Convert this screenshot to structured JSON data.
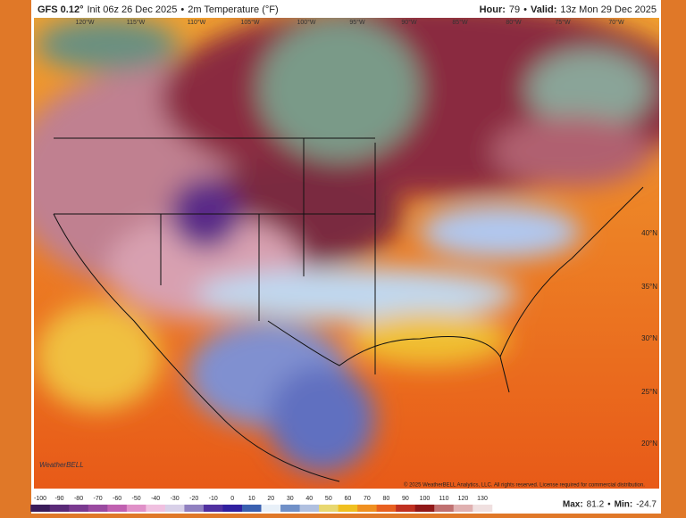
{
  "header": {
    "model": "GFS 0.12°",
    "init": "Init 06z 26 Dec 2025",
    "sep1": "•",
    "field": "2m Temperature (°F)",
    "hour_label": "Hour:",
    "hour": "79",
    "sep2": "•",
    "valid_label": "Valid:",
    "valid": "13z Mon 29 Dec 2025"
  },
  "map": {
    "lon_labels": [
      "120°W",
      "115°W",
      "110°W",
      "105°W",
      "100°W",
      "95°W",
      "90°W",
      "85°W",
      "80°W",
      "75°W",
      "70°W"
    ],
    "lat_labels": [
      "40°N",
      "35°N",
      "30°N",
      "25°N",
      "20°N"
    ],
    "copyright": "© 2025 WeatherBELL Analytics, LLC. All rights reserved. License required for commercial distribution.",
    "logo": "WeatherBELL"
  },
  "colorbar": {
    "ticks": [
      -100,
      -90,
      -80,
      -70,
      -60,
      -50,
      -40,
      -30,
      -20,
      -10,
      0,
      10,
      20,
      30,
      40,
      50,
      60,
      70,
      80,
      90,
      100,
      110,
      120,
      130
    ],
    "colors": [
      "#3a1c5a",
      "#5a2a78",
      "#7a3a90",
      "#9a4aa0",
      "#c060b0",
      "#e090c8",
      "#f0c0e0",
      "#d8d0e8",
      "#9080c0",
      "#5030a0",
      "#3020a0",
      "#3a60b0",
      "#e8f0f8",
      "#7090c8",
      "#b0c0e0",
      "#e8d870",
      "#f0c020",
      "#f09020",
      "#e86020",
      "#c03020",
      "#901818",
      "#c07070",
      "#e0b0b0",
      "#f0e0e0"
    ]
  },
  "stats": {
    "max_label": "Max:",
    "max": "81.2",
    "sep": "•",
    "min_label": "Min:",
    "min": "-24.7"
  }
}
